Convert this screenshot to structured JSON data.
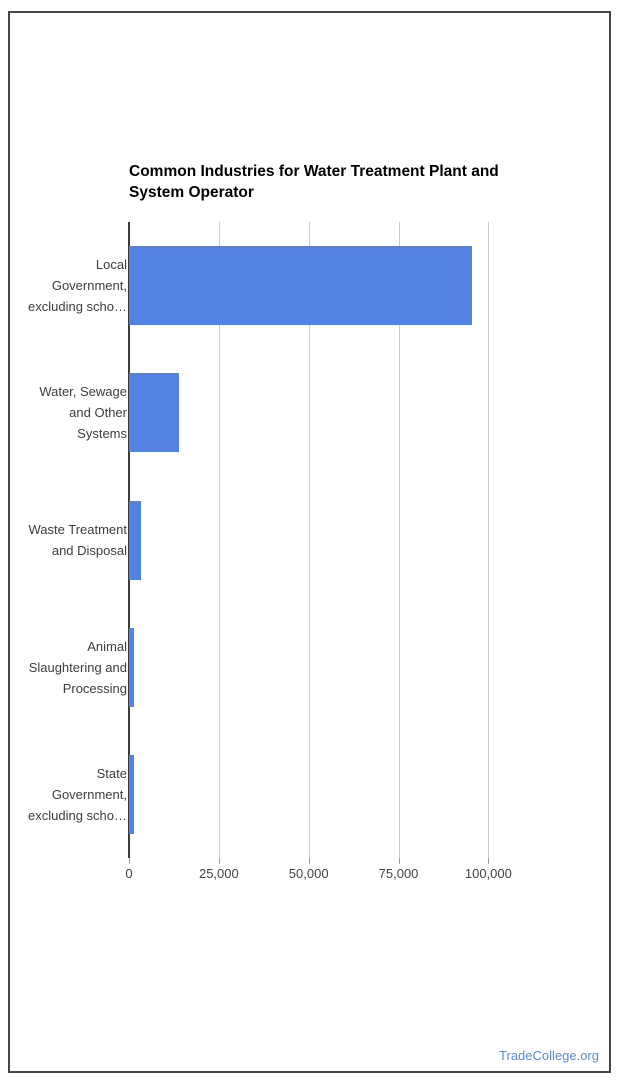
{
  "chart_data": {
    "type": "bar",
    "orientation": "horizontal",
    "title": "Common Industries for Water Treatment Plant and System Operator",
    "title_lines": [
      "Common Industries for Water Treatment Plant and",
      "System Operator"
    ],
    "categories": [
      {
        "label": "Local Government, excluding scho…",
        "lines": [
          "Local",
          "Government,",
          "excluding scho…"
        ]
      },
      {
        "label": "Water, Sewage and Other Systems",
        "lines": [
          "Water, Sewage",
          "and Other",
          "Systems"
        ]
      },
      {
        "label": "Waste Treatment and Disposal",
        "lines": [
          "Waste Treatment",
          "and Disposal"
        ]
      },
      {
        "label": "Animal Slaughtering and Processing",
        "lines": [
          "Animal",
          "Slaughtering and",
          "Processing"
        ]
      },
      {
        "label": "State Government, excluding scho…",
        "lines": [
          "State",
          "Government,",
          "excluding scho…"
        ]
      }
    ],
    "values": [
      95500,
      13900,
      3300,
      1400,
      1400
    ],
    "xlabel": "",
    "ylabel": "",
    "xlim": [
      0,
      128000
    ],
    "x_ticks": [
      {
        "value": 0,
        "label": "0"
      },
      {
        "value": 25000,
        "label": "25,000"
      },
      {
        "value": 50000,
        "label": "50,000"
      },
      {
        "value": 75000,
        "label": "75,000"
      },
      {
        "value": 100000,
        "label": "100,000"
      }
    ],
    "grid": true,
    "legend": "none",
    "bar_color": "#5282e2"
  },
  "footer": {
    "link_label": "TradeCollege.org",
    "link_color": "#5c87dc"
  }
}
